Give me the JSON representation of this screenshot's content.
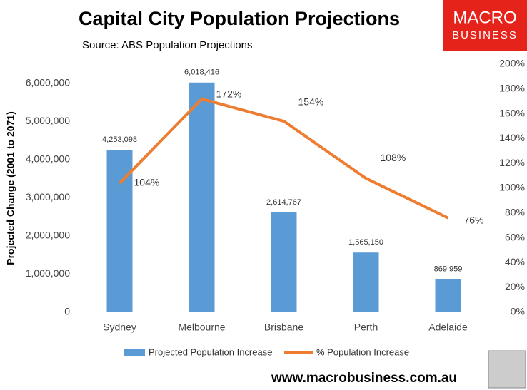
{
  "chart_data": {
    "type": "bar_line",
    "title": "Capital City Population Projections",
    "subtitle": "Source: ABS Population Projections",
    "y_label": "Projected Change (2001 to 2071)",
    "categories": [
      "Sydney",
      "Melbourne",
      "Brisbane",
      "Perth",
      "Adelaide"
    ],
    "series": [
      {
        "name": "Projected Population Increase",
        "color": "#5b9bd5",
        "type": "bar",
        "values": [
          4253098,
          6018416,
          2614767,
          1565150,
          869959
        ],
        "value_labels": [
          "4,253,098",
          "6,018,416",
          "2,614,767",
          "1,565,150",
          "869,959"
        ]
      },
      {
        "name": "% Population Increase",
        "color": "#ed7d31",
        "type": "line",
        "axis": "y2",
        "values": [
          104,
          172,
          154,
          108,
          76
        ],
        "value_labels": [
          "104%",
          "172%",
          "154%",
          "108%",
          "76%"
        ]
      }
    ],
    "ylim": [
      0,
      6500000
    ],
    "yticks": [
      0,
      {
        "value": 1000000,
        "label": "1,000,000"
      },
      {
        "value": 2000000,
        "label": "2,000,000"
      },
      {
        "value": 3000000,
        "label": "3,000,000"
      },
      {
        "value": 4000000,
        "label": "4,000,000"
      },
      {
        "value": 5000000,
        "label": "5,000,000"
      },
      {
        "value": 6000000,
        "label": "6,000,000"
      }
    ],
    "y2lim": [
      0,
      200
    ],
    "y2ticks": [
      {
        "value": 0,
        "label": "0%"
      },
      {
        "value": 20,
        "label": "20%"
      },
      {
        "value": 40,
        "label": "40%"
      },
      {
        "value": 60,
        "label": "60%"
      },
      {
        "value": 80,
        "label": "80%"
      },
      {
        "value": 100,
        "label": "100%"
      },
      {
        "value": 120,
        "label": "120%"
      },
      {
        "value": 140,
        "label": "140%"
      },
      {
        "value": 160,
        "label": "160%"
      },
      {
        "value": 180,
        "label": "180%"
      },
      {
        "value": 200,
        "label": "200%"
      }
    ],
    "legend": "bottom"
  },
  "brand": {
    "line1": "MACRO",
    "line2": "BUSINESS"
  },
  "footer": "www.macrobusiness.com.au"
}
